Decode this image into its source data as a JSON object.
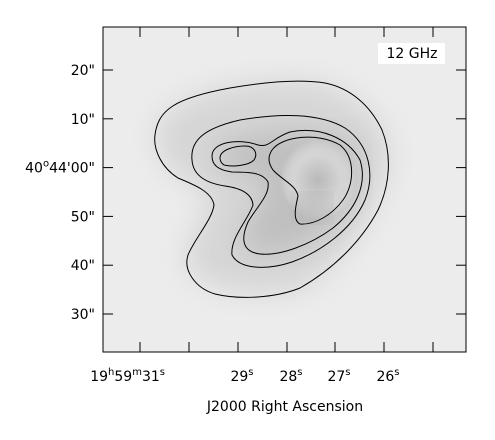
{
  "panel_label": "12 GHz",
  "x_axis": {
    "label": "J2000 Right Ascension",
    "ticks": [
      [
        "19",
        "h",
        "59",
        "m",
        "31",
        "s"
      ],
      [
        "29",
        "s"
      ],
      [
        "28",
        "s"
      ],
      [
        "27",
        "s"
      ],
      [
        "26",
        "s"
      ]
    ]
  },
  "y_axis": {
    "ticks": [
      [
        "20\""
      ],
      [
        "10\""
      ],
      [
        "40",
        "o",
        "44'00\""
      ],
      [
        "50\""
      ],
      [
        "40\""
      ],
      [
        "30\""
      ]
    ]
  }
}
